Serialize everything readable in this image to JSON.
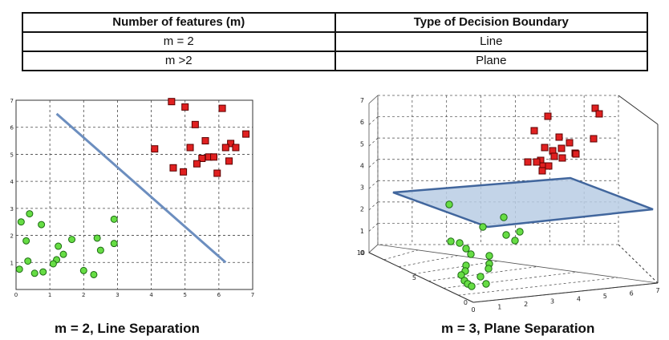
{
  "table": {
    "headers": [
      "Number of features (m)",
      "Type of Decision Boundary"
    ],
    "rows": [
      [
        "m = 2",
        "Line"
      ],
      [
        "m >2",
        "Plane"
      ]
    ]
  },
  "captions": {
    "left": "m = 2, Line Separation",
    "right": "m = 3, Plane Separation"
  },
  "colors": {
    "class_a_fill": "#e02020",
    "class_a_stroke": "#5a0000",
    "class_b_fill": "#66dd44",
    "class_b_stroke": "#1c6a12",
    "boundary": "#6c8ebf",
    "plane_fill": "#b8cce4"
  },
  "chart_data": [
    {
      "type": "scatter",
      "title": "",
      "xlabel": "",
      "ylabel": "",
      "xlim": [
        0,
        7
      ],
      "ylim": [
        0,
        7
      ],
      "x_ticks": [
        "0",
        "1",
        "2",
        "3",
        "4",
        "5",
        "6",
        "7"
      ],
      "y_ticks": [
        "1",
        "2",
        "3",
        "4",
        "5",
        "6",
        "7"
      ],
      "grid": true,
      "series": [
        {
          "marker": "square",
          "points": [
            [
              4.6,
              6.95
            ],
            [
              5.0,
              6.75
            ],
            [
              6.1,
              6.7
            ],
            [
              5.3,
              6.1
            ],
            [
              6.8,
              5.75
            ],
            [
              5.6,
              5.5
            ],
            [
              6.35,
              5.4
            ],
            [
              6.2,
              5.25
            ],
            [
              6.5,
              5.25
            ],
            [
              5.15,
              5.25
            ],
            [
              4.1,
              5.2
            ],
            [
              5.7,
              4.9
            ],
            [
              5.5,
              4.85
            ],
            [
              5.85,
              4.9
            ],
            [
              6.3,
              4.75
            ],
            [
              5.35,
              4.65
            ],
            [
              4.65,
              4.5
            ],
            [
              5.95,
              4.3
            ],
            [
              4.95,
              4.35
            ]
          ]
        },
        {
          "marker": "circle",
          "points": [
            [
              0.4,
              2.8
            ],
            [
              0.15,
              2.5
            ],
            [
              0.75,
              2.4
            ],
            [
              2.9,
              2.6
            ],
            [
              1.65,
              1.85
            ],
            [
              2.4,
              1.9
            ],
            [
              0.3,
              1.8
            ],
            [
              2.9,
              1.7
            ],
            [
              1.25,
              1.6
            ],
            [
              2.5,
              1.45
            ],
            [
              1.4,
              1.3
            ],
            [
              1.2,
              1.1
            ],
            [
              0.35,
              1.05
            ],
            [
              1.1,
              0.95
            ],
            [
              0.1,
              0.75
            ],
            [
              2.0,
              0.7
            ],
            [
              0.55,
              0.6
            ],
            [
              0.8,
              0.65
            ],
            [
              2.3,
              0.55
            ]
          ]
        }
      ],
      "boundary_line": [
        [
          1.2,
          6.5
        ],
        [
          6.2,
          1.0
        ]
      ]
    },
    {
      "type": "scatter",
      "title": "",
      "xlabel": "",
      "ylabel": "",
      "x_ticks": [
        "0",
        "1",
        "2",
        "3",
        "4",
        "5",
        "6",
        "7"
      ],
      "y_ticks": [
        "0",
        "5",
        "10"
      ],
      "z_ticks": [
        "0",
        "1",
        "2",
        "3",
        "4",
        "5",
        "6",
        "7"
      ],
      "grid": true,
      "boundary": "plane"
    }
  ]
}
